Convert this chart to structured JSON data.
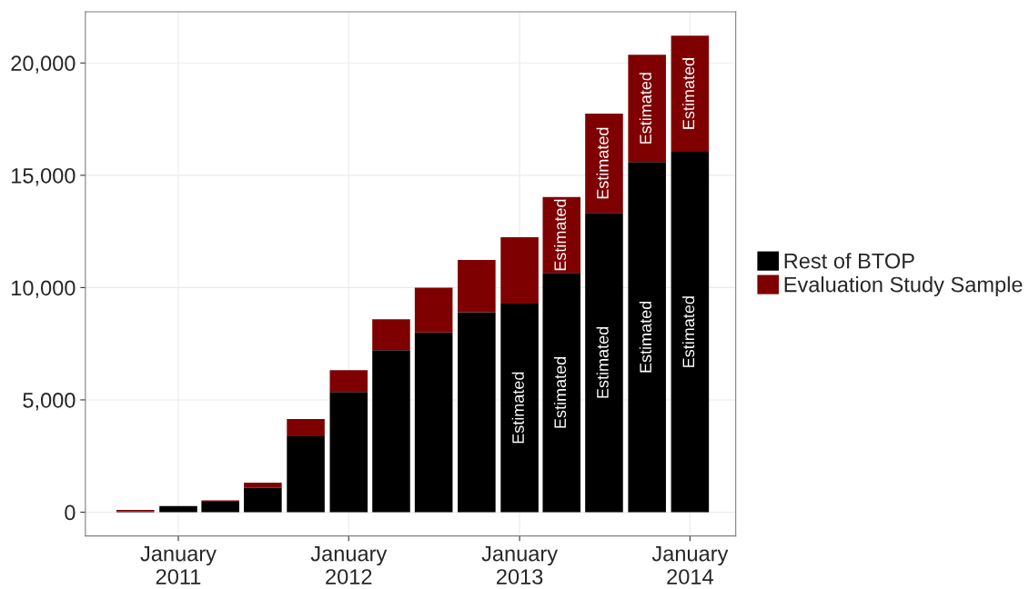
{
  "chart_data": {
    "type": "bar",
    "stacked": true,
    "x": [
      "2010-10",
      "2011-01",
      "2011-04",
      "2011-07",
      "2011-10",
      "2012-01",
      "2012-04",
      "2012-07",
      "2012-10",
      "2013-01",
      "2013-04",
      "2013-07",
      "2013-10",
      "2014-01"
    ],
    "series": [
      {
        "name": "Rest of BTOP",
        "color": "#000000",
        "values": [
          40,
          270,
          460,
          1080,
          3380,
          5350,
          7210,
          8000,
          8900,
          9290,
          10650,
          13320,
          15590,
          16050
        ],
        "value_labels": [
          null,
          null,
          null,
          null,
          null,
          null,
          null,
          null,
          null,
          "Estimated",
          "Estimated",
          "Estimated",
          "Estimated",
          "Estimated"
        ]
      },
      {
        "name": "Evaluation Study Sample",
        "color": "#7f0000",
        "values": [
          60,
          0,
          70,
          230,
          770,
          970,
          1380,
          2000,
          2330,
          2950,
          3380,
          4430,
          4780,
          5170
        ],
        "value_labels": [
          null,
          null,
          null,
          null,
          null,
          null,
          null,
          null,
          null,
          null,
          "Estimated",
          "Estimated",
          "Estimated",
          "Estimated"
        ]
      }
    ],
    "xlim": [
      "2010-06-16",
      "2014-04-09"
    ],
    "xticks": [
      {
        "value": "2011-01",
        "label": "January\n2011"
      },
      {
        "value": "2012-01",
        "label": "January\n2012"
      },
      {
        "value": "2013-01",
        "label": "January\n2013"
      },
      {
        "value": "2014-01",
        "label": "January\n2014"
      }
    ],
    "ylim": [
      -1060,
      22280
    ],
    "yticks": [
      {
        "value": 0,
        "label": "0"
      },
      {
        "value": 5000,
        "label": "5,000"
      },
      {
        "value": 10000,
        "label": "10,000"
      },
      {
        "value": 15000,
        "label": "15,000"
      },
      {
        "value": 20000,
        "label": "20,000"
      }
    ],
    "grid": true,
    "legend": "right"
  }
}
